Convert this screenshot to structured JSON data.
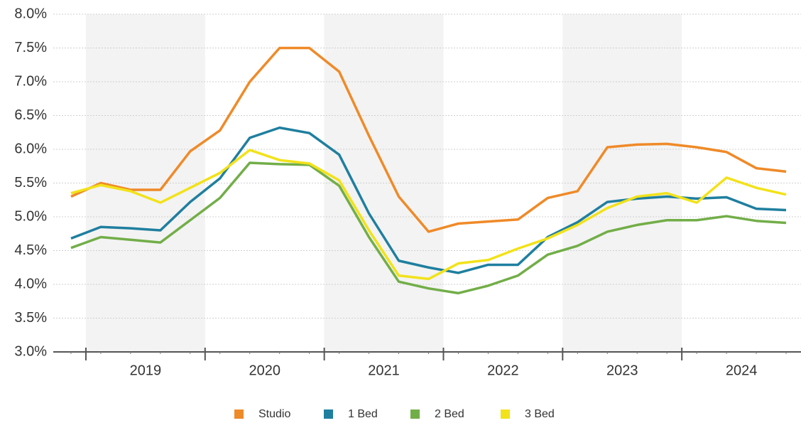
{
  "chart_data": {
    "type": "line",
    "categories": [
      null,
      null,
      null,
      null,
      null,
      null,
      null,
      null,
      null,
      null,
      null,
      null,
      null,
      null,
      null,
      null,
      null,
      null,
      null,
      null,
      null,
      null,
      null,
      null,
      null
    ],
    "x_group_labels": [
      "2019",
      "2020",
      "2021",
      "2022",
      "2023",
      "2024"
    ],
    "ylim": [
      3.0,
      8.0
    ],
    "yticks": [
      {
        "value": 3.0,
        "label": "3.0%"
      },
      {
        "value": 3.5,
        "label": "3.5%"
      },
      {
        "value": 4.0,
        "label": "4.0%"
      },
      {
        "value": 4.5,
        "label": "4.5%"
      },
      {
        "value": 5.0,
        "label": "5.0%"
      },
      {
        "value": 5.5,
        "label": "5.5%"
      },
      {
        "value": 6.0,
        "label": "6.0%"
      },
      {
        "value": 6.5,
        "label": "6.5%"
      },
      {
        "value": 7.0,
        "label": "7.0%"
      },
      {
        "value": 7.5,
        "label": "7.5%"
      },
      {
        "value": 8.0,
        "label": "8.0%"
      }
    ],
    "grid": true,
    "series": [
      {
        "name": "Studio",
        "color": "#ef8a28",
        "values": [
          5.3,
          5.5,
          5.4,
          5.4,
          5.97,
          6.28,
          7.0,
          7.5,
          7.5,
          7.15,
          6.2,
          5.3,
          4.78,
          4.9,
          4.93,
          4.96,
          5.28,
          5.38,
          6.03,
          6.07,
          6.08,
          6.03,
          5.96,
          5.72,
          5.67
        ]
      },
      {
        "name": "1 Bed",
        "color": "#1f7f9f",
        "values": [
          4.68,
          4.85,
          4.83,
          4.8,
          5.22,
          5.57,
          6.17,
          6.32,
          6.24,
          5.92,
          5.05,
          4.35,
          4.25,
          4.17,
          4.29,
          4.29,
          4.7,
          4.92,
          5.22,
          5.27,
          5.3,
          5.27,
          5.29,
          5.12,
          5.1
        ]
      },
      {
        "name": "2 Bed",
        "color": "#72ae48",
        "values": [
          4.54,
          4.7,
          4.66,
          4.62,
          4.95,
          5.28,
          5.8,
          5.78,
          5.77,
          5.46,
          4.7,
          4.04,
          3.94,
          3.87,
          3.98,
          4.13,
          4.44,
          4.57,
          4.78,
          4.88,
          4.95,
          4.95,
          5.01,
          4.94,
          4.91
        ]
      },
      {
        "name": "3 Bed",
        "color": "#f2e21a",
        "values": [
          5.35,
          5.47,
          5.38,
          5.21,
          5.43,
          5.65,
          5.99,
          5.84,
          5.79,
          5.54,
          4.8,
          4.13,
          4.08,
          4.31,
          4.36,
          4.53,
          4.68,
          4.88,
          5.13,
          5.3,
          5.35,
          5.21,
          5.58,
          5.43,
          5.33
        ]
      }
    ]
  }
}
